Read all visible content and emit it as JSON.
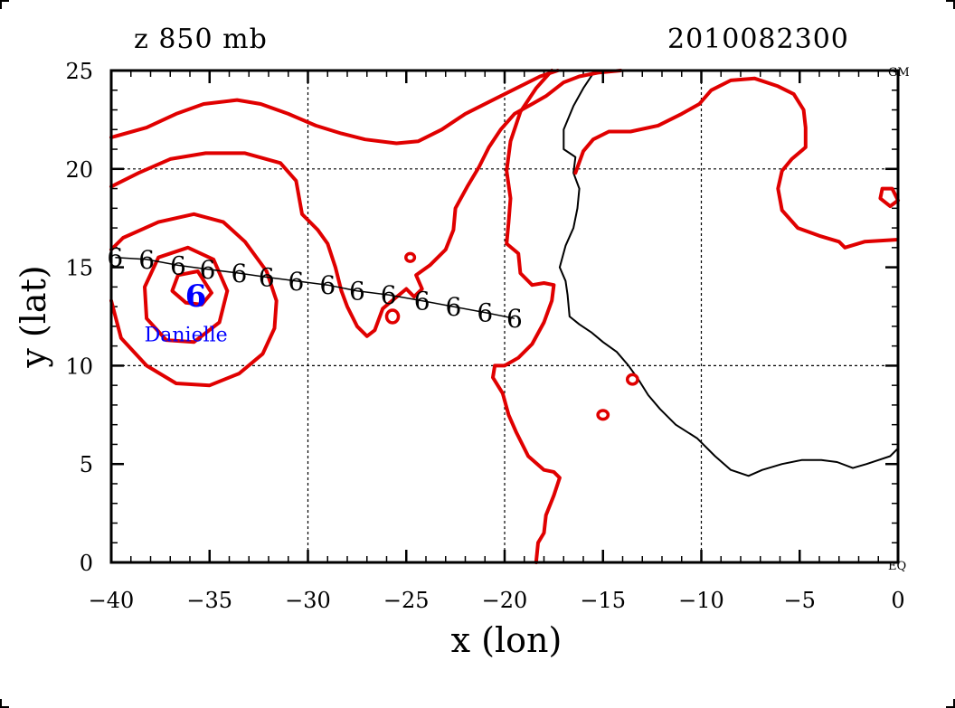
{
  "header": {
    "left_title": "z 850 mb",
    "right_title": "2010082300"
  },
  "chart_data": {
    "type": "contour-map",
    "xlabel": "x (lon)",
    "ylabel": "y (lat)",
    "xlim": [
      -40,
      0
    ],
    "ylim": [
      0,
      25
    ],
    "x_ticks": [
      -40,
      -35,
      -30,
      -25,
      -20,
      -15,
      -10,
      -5,
      0
    ],
    "y_ticks": [
      0,
      5,
      10,
      15,
      20,
      25
    ],
    "x_tick_labels": [
      "−40",
      "−35",
      "−30",
      "−25",
      "−20",
      "−15",
      "−10",
      "−5",
      "0"
    ],
    "y_tick_labels": [
      "0",
      "5",
      "10",
      "15",
      "20",
      "25"
    ],
    "grid_x": [
      -30,
      -20,
      -10
    ],
    "grid_y": [
      10,
      20
    ],
    "edge_labels": {
      "top_right": "GM",
      "bottom_right": "EQ"
    },
    "storm": {
      "name": "Danielle",
      "lon": -35.7,
      "lat": 13.6,
      "label_lon": -36.2,
      "label_lat": 11.6,
      "symbol": "6",
      "color": "#0000ff"
    },
    "track": {
      "symbol": "6",
      "color": "#000000",
      "points": [
        [
          -39.8,
          15.5
        ],
        [
          -38.2,
          15.4
        ],
        [
          -36.6,
          15.1
        ],
        [
          -35.1,
          14.9
        ],
        [
          -33.5,
          14.7
        ],
        [
          -32.1,
          14.5
        ],
        [
          -30.6,
          14.3
        ],
        [
          -29.0,
          14.1
        ],
        [
          -27.5,
          13.8
        ],
        [
          -25.9,
          13.6
        ],
        [
          -24.2,
          13.3
        ],
        [
          -22.6,
          13.0
        ],
        [
          -21.0,
          12.7
        ],
        [
          -19.5,
          12.4
        ]
      ]
    },
    "coastline": {
      "color": "#000000",
      "points": [
        [
          -15.4,
          25.0
        ],
        [
          -16.0,
          24.1
        ],
        [
          -16.5,
          23.2
        ],
        [
          -17.0,
          22.0
        ],
        [
          -17.0,
          21.0
        ],
        [
          -16.4,
          20.6
        ],
        [
          -16.5,
          19.8
        ],
        [
          -16.2,
          19.0
        ],
        [
          -16.3,
          18.0
        ],
        [
          -16.5,
          17.0
        ],
        [
          -16.9,
          16.1
        ],
        [
          -17.2,
          15.0
        ],
        [
          -16.9,
          14.3
        ],
        [
          -16.8,
          13.6
        ],
        [
          -16.7,
          12.5
        ],
        [
          -16.2,
          12.1
        ],
        [
          -15.6,
          11.7
        ],
        [
          -15.0,
          11.2
        ],
        [
          -14.3,
          10.7
        ],
        [
          -13.7,
          10.0
        ],
        [
          -13.2,
          9.3
        ],
        [
          -12.7,
          8.5
        ],
        [
          -12.1,
          7.8
        ],
        [
          -11.3,
          7.0
        ],
        [
          -10.2,
          6.3
        ],
        [
          -9.3,
          5.4
        ],
        [
          -8.5,
          4.7
        ],
        [
          -7.6,
          4.4
        ],
        [
          -6.9,
          4.7
        ],
        [
          -5.9,
          5.0
        ],
        [
          -4.9,
          5.2
        ],
        [
          -3.9,
          5.2
        ],
        [
          -3.1,
          5.1
        ],
        [
          -2.3,
          4.8
        ],
        [
          -1.6,
          5.0
        ],
        [
          -0.4,
          5.4
        ],
        [
          0.0,
          5.8
        ]
      ]
    },
    "contours": [
      {
        "color": "#e00000",
        "points": [
          [
            -40.0,
            21.6
          ],
          [
            -38.2,
            22.1
          ],
          [
            -36.7,
            22.8
          ],
          [
            -35.3,
            23.3
          ],
          [
            -33.6,
            23.5
          ],
          [
            -32.4,
            23.3
          ],
          [
            -31.0,
            22.8
          ],
          [
            -29.6,
            22.2
          ],
          [
            -28.3,
            21.8
          ],
          [
            -27.1,
            21.5
          ],
          [
            -25.5,
            21.3
          ],
          [
            -24.4,
            21.4
          ],
          [
            -23.2,
            22.0
          ],
          [
            -22.0,
            22.8
          ],
          [
            -20.6,
            23.5
          ],
          [
            -19.4,
            24.1
          ],
          [
            -18.2,
            24.7
          ],
          [
            -17.3,
            25.0
          ]
        ]
      },
      {
        "color": "#e00000",
        "points": [
          [
            -40.0,
            19.1
          ],
          [
            -38.6,
            19.8
          ],
          [
            -37.0,
            20.5
          ],
          [
            -35.2,
            20.8
          ],
          [
            -33.2,
            20.8
          ],
          [
            -31.4,
            20.3
          ],
          [
            -30.6,
            19.4
          ],
          [
            -30.3,
            17.7
          ],
          [
            -29.5,
            16.9
          ],
          [
            -29.0,
            16.2
          ],
          [
            -28.6,
            15.0
          ],
          [
            -28.3,
            13.8
          ],
          [
            -28.0,
            13.0
          ],
          [
            -27.5,
            12.0
          ],
          [
            -27.0,
            11.5
          ],
          [
            -26.6,
            11.8
          ],
          [
            -26.2,
            12.9
          ],
          [
            -25.6,
            13.4
          ],
          [
            -25.0,
            13.9
          ],
          [
            -24.6,
            13.5
          ],
          [
            -24.2,
            13.9
          ],
          [
            -24.5,
            14.6
          ],
          [
            -23.8,
            15.1
          ],
          [
            -23.0,
            15.9
          ],
          [
            -22.6,
            16.9
          ],
          [
            -22.5,
            18.0
          ],
          [
            -21.9,
            19.1
          ],
          [
            -21.3,
            20.1
          ],
          [
            -20.8,
            21.1
          ],
          [
            -20.2,
            22.0
          ],
          [
            -19.5,
            22.8
          ],
          [
            -18.6,
            23.3
          ],
          [
            -17.9,
            23.7
          ],
          [
            -17.0,
            24.4
          ],
          [
            -16.2,
            24.7
          ],
          [
            -15.2,
            24.9
          ],
          [
            -14.1,
            25.0
          ]
        ]
      },
      {
        "color": "#e00000",
        "points": [
          [
            -40.0,
            13.3
          ],
          [
            -39.5,
            11.4
          ],
          [
            -38.2,
            10.0
          ],
          [
            -36.7,
            9.1
          ],
          [
            -35.0,
            9.0
          ],
          [
            -33.5,
            9.6
          ],
          [
            -32.3,
            10.6
          ],
          [
            -31.7,
            11.9
          ],
          [
            -31.6,
            13.3
          ],
          [
            -32.1,
            14.8
          ],
          [
            -33.2,
            16.3
          ],
          [
            -34.3,
            17.3
          ],
          [
            -35.8,
            17.7
          ],
          [
            -37.6,
            17.3
          ],
          [
            -39.4,
            16.5
          ],
          [
            -40.0,
            15.9
          ]
        ]
      },
      {
        "color": "#e00000",
        "points": [
          [
            -34.1,
            13.8
          ],
          [
            -34.5,
            12.2
          ],
          [
            -35.8,
            11.2
          ],
          [
            -37.2,
            11.3
          ],
          [
            -38.2,
            12.4
          ],
          [
            -38.3,
            14.0
          ],
          [
            -37.6,
            15.5
          ],
          [
            -36.1,
            16.0
          ],
          [
            -34.8,
            15.4
          ],
          [
            -34.1,
            13.8
          ]
        ]
      },
      {
        "color": "#e00000",
        "points": [
          [
            -34.9,
            13.7
          ],
          [
            -35.4,
            13.1
          ],
          [
            -36.2,
            13.2
          ],
          [
            -36.9,
            13.8
          ],
          [
            -36.6,
            14.6
          ],
          [
            -35.6,
            14.8
          ],
          [
            -34.9,
            13.7
          ]
        ]
      },
      {
        "color": "#e00000",
        "points": [
          [
            -17.6,
            25.0
          ],
          [
            -18.4,
            24.1
          ],
          [
            -19.2,
            22.9
          ],
          [
            -19.7,
            21.4
          ],
          [
            -19.9,
            19.9
          ],
          [
            -19.7,
            18.5
          ],
          [
            -19.8,
            17.3
          ],
          [
            -19.9,
            16.2
          ],
          [
            -19.3,
            15.7
          ],
          [
            -19.2,
            14.7
          ],
          [
            -18.6,
            14.1
          ],
          [
            -18.0,
            14.2
          ],
          [
            -17.5,
            14.1
          ],
          [
            -17.6,
            13.3
          ],
          [
            -18.0,
            12.2
          ],
          [
            -18.6,
            11.1
          ],
          [
            -19.3,
            10.4
          ],
          [
            -20.0,
            10.0
          ],
          [
            -20.5,
            10.0
          ],
          [
            -20.6,
            9.4
          ],
          [
            -20.1,
            8.6
          ],
          [
            -19.8,
            7.5
          ],
          [
            -19.4,
            6.6
          ],
          [
            -18.8,
            5.4
          ],
          [
            -18.0,
            4.7
          ],
          [
            -17.5,
            4.6
          ],
          [
            -17.2,
            4.3
          ],
          [
            -17.5,
            3.4
          ],
          [
            -17.9,
            2.4
          ],
          [
            -18.0,
            1.5
          ],
          [
            -18.3,
            1.0
          ],
          [
            -18.4,
            0.0
          ]
        ]
      },
      {
        "color": "#e00000",
        "points": [
          [
            -16.4,
            19.8
          ],
          [
            -16.0,
            20.9
          ],
          [
            -15.5,
            21.5
          ],
          [
            -14.7,
            21.9
          ],
          [
            -13.6,
            21.9
          ],
          [
            -12.2,
            22.2
          ],
          [
            -11.0,
            22.8
          ],
          [
            -10.1,
            23.3
          ],
          [
            -9.5,
            24.0
          ],
          [
            -8.5,
            24.5
          ],
          [
            -7.3,
            24.6
          ],
          [
            -6.1,
            24.2
          ],
          [
            -5.3,
            23.8
          ],
          [
            -4.8,
            23.0
          ],
          [
            -4.7,
            22.1
          ],
          [
            -4.7,
            21.1
          ],
          [
            -5.4,
            20.5
          ],
          [
            -5.9,
            19.9
          ],
          [
            -6.1,
            19.0
          ],
          [
            -5.9,
            17.9
          ],
          [
            -5.1,
            17.0
          ],
          [
            -4.0,
            16.6
          ],
          [
            -3.0,
            16.3
          ],
          [
            -2.7,
            16.0
          ],
          [
            -1.7,
            16.3
          ],
          [
            -0.1,
            16.4
          ]
        ]
      },
      {
        "color": "#e00000",
        "points": [
          [
            0.0,
            18.4
          ],
          [
            -0.3,
            19.0
          ],
          [
            -0.8,
            19.0
          ],
          [
            -0.9,
            18.5
          ],
          [
            -0.4,
            18.1
          ],
          [
            0.0,
            18.4
          ]
        ]
      }
    ],
    "small_circles": [
      {
        "lon": -24.8,
        "lat": 15.5,
        "r_lon": 0.22,
        "r_lat": 0.2
      },
      {
        "lon": -25.7,
        "lat": 12.5,
        "r_lon": 0.3,
        "r_lat": 0.32
      },
      {
        "lon": -15.0,
        "lat": 7.5,
        "r_lon": 0.26,
        "r_lat": 0.22
      },
      {
        "lon": -13.5,
        "lat": 9.3,
        "r_lon": 0.26,
        "r_lat": 0.24
      }
    ]
  }
}
